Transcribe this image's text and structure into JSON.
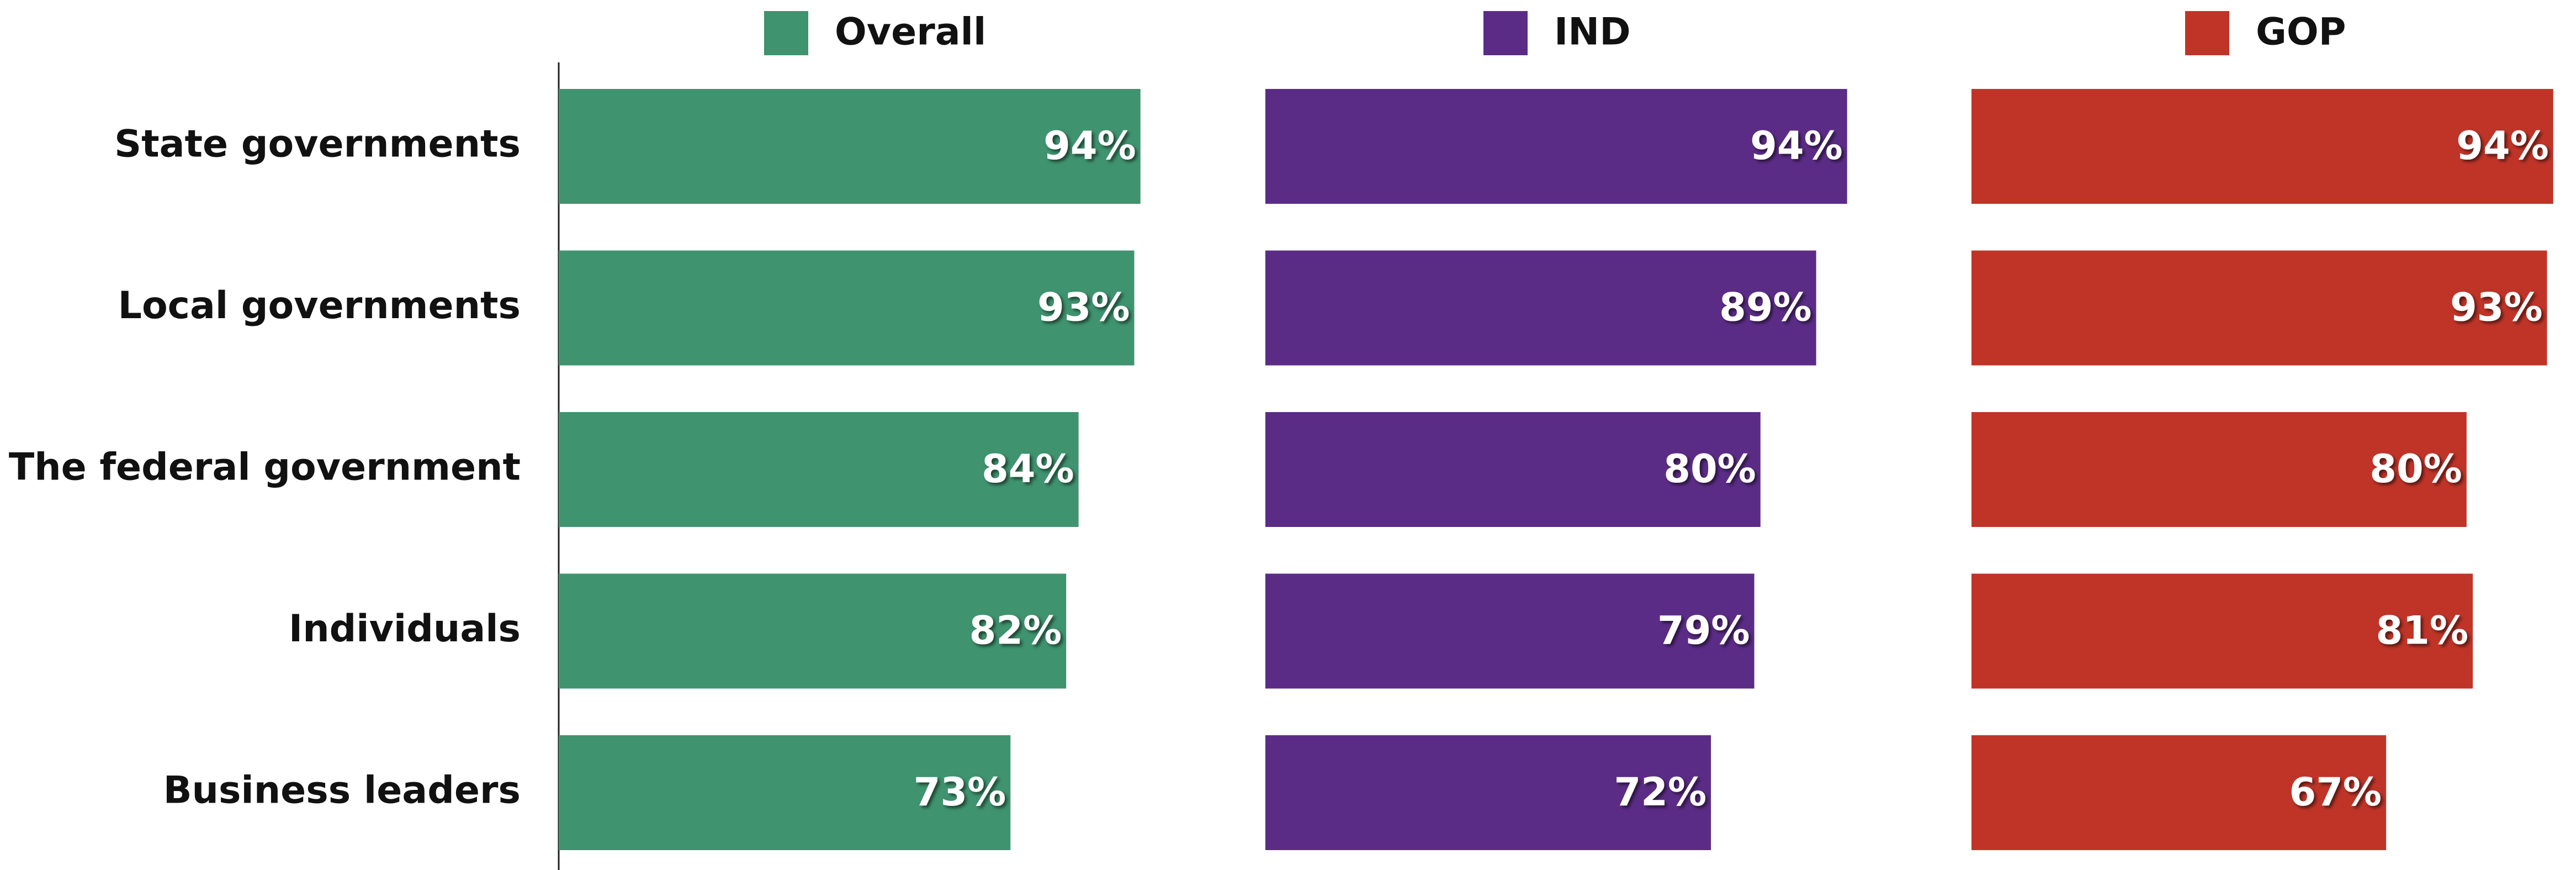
{
  "chart_data": {
    "type": "bar",
    "orientation": "horizontal",
    "categories": [
      "State governments",
      "Local governments",
      "The federal government",
      "Individuals",
      "Business leaders"
    ],
    "series": [
      {
        "name": "Overall",
        "color": "#3f936f",
        "values": [
          94,
          93,
          84,
          82,
          73
        ],
        "value_labels": [
          "94%",
          "93%",
          "84%",
          "82%",
          "73%"
        ]
      },
      {
        "name": "IND",
        "color": "#5b2c86",
        "values": [
          94,
          89,
          80,
          79,
          72
        ],
        "value_labels": [
          "94%",
          "89%",
          "80%",
          "79%",
          "72%"
        ]
      },
      {
        "name": "GOP",
        "color": "#c03428",
        "values": [
          94,
          93,
          80,
          81,
          67
        ],
        "value_labels": [
          "94%",
          "93%",
          "80%",
          "81%",
          "67%"
        ]
      }
    ]
  }
}
